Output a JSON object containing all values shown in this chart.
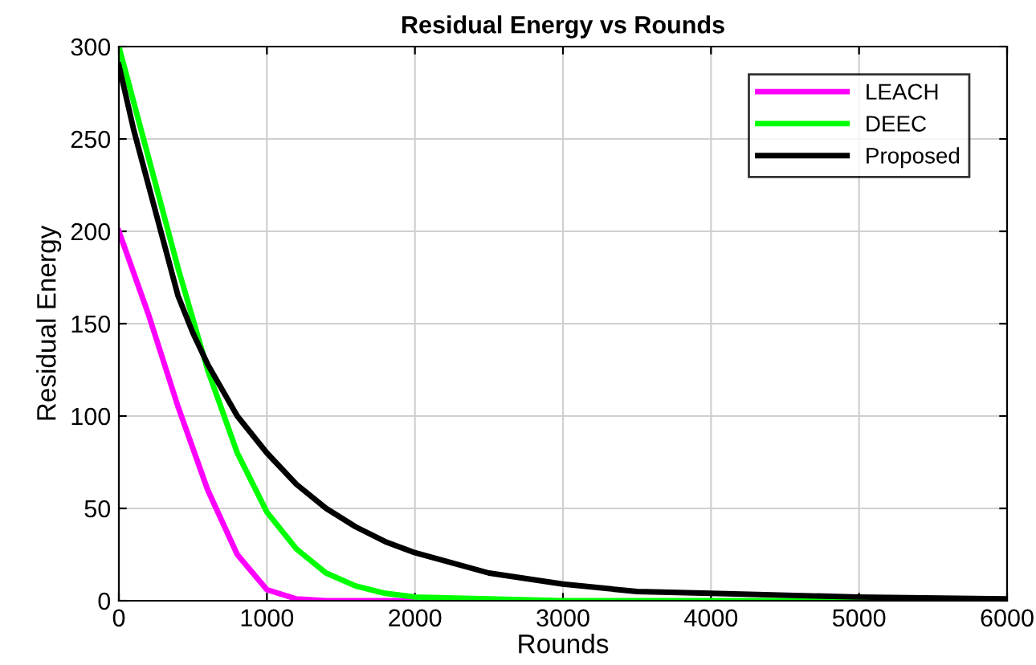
{
  "chart_data": {
    "type": "line",
    "title": "Residual Energy vs Rounds",
    "xlabel": "Rounds",
    "ylabel": "Residual Energy",
    "xlim": [
      0,
      6000
    ],
    "ylim": [
      0,
      300
    ],
    "xticks": [
      0,
      1000,
      2000,
      3000,
      4000,
      5000,
      6000
    ],
    "yticks": [
      0,
      50,
      100,
      150,
      200,
      250,
      300
    ],
    "grid": true,
    "legend": "top right",
    "line_style": "solid",
    "marker": "none",
    "series": [
      {
        "name": "LEACH",
        "color": "#ff00ff",
        "x": [
          0,
          200,
          400,
          600,
          800,
          1000,
          1200,
          1400,
          2000
        ],
        "values": [
          200,
          155,
          105,
          60,
          25,
          6,
          1,
          0,
          0
        ]
      },
      {
        "name": "DEEC",
        "color": "#00ff00",
        "x": [
          0,
          200,
          400,
          600,
          800,
          1000,
          1200,
          1400,
          1600,
          1800,
          2000,
          2500,
          3000,
          4000,
          5000,
          6000
        ],
        "values": [
          300,
          240,
          180,
          125,
          80,
          48,
          28,
          15,
          8,
          4,
          2,
          1,
          0,
          0,
          0,
          0
        ]
      },
      {
        "name": "Proposed",
        "color": "#000000",
        "x": [
          0,
          100,
          200,
          300,
          400,
          500,
          600,
          800,
          1000,
          1200,
          1400,
          1600,
          1800,
          2000,
          2500,
          3000,
          3500,
          4000,
          5000,
          6000
        ],
        "values": [
          290,
          255,
          225,
          195,
          165,
          145,
          128,
          100,
          80,
          63,
          50,
          40,
          32,
          26,
          15,
          9,
          5,
          4,
          2,
          1
        ]
      }
    ]
  }
}
